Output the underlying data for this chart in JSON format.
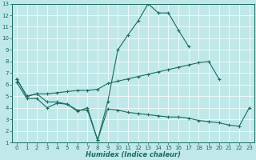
{
  "xlabel": "Humidex (Indice chaleur)",
  "xlim": [
    -0.5,
    23.5
  ],
  "ylim": [
    1,
    13
  ],
  "xticks": [
    0,
    1,
    2,
    3,
    4,
    5,
    6,
    7,
    8,
    9,
    10,
    11,
    12,
    13,
    14,
    15,
    16,
    17,
    18,
    19,
    20,
    21,
    22,
    23
  ],
  "yticks": [
    1,
    2,
    3,
    4,
    5,
    6,
    7,
    8,
    9,
    10,
    11,
    12,
    13
  ],
  "bg_color": "#c0e8e8",
  "line_color": "#1a6b60",
  "line1_y": [
    6.5,
    5.0,
    5.2,
    4.5,
    4.5,
    4.3,
    3.7,
    4.0,
    1.2,
    4.5,
    9.0,
    10.3,
    11.5,
    13.0,
    12.2,
    12.2,
    10.7,
    9.3,
    null,
    null,
    null,
    null,
    null,
    null
  ],
  "line2_y": [
    6.5,
    5.0,
    5.2,
    5.2,
    5.3,
    5.4,
    5.5,
    5.5,
    5.6,
    6.1,
    6.3,
    6.5,
    6.7,
    6.9,
    7.1,
    7.3,
    7.5,
    7.7,
    7.9,
    8.0,
    6.5,
    null,
    null,
    null
  ],
  "line3_y": [
    6.2,
    4.8,
    4.8,
    4.0,
    4.4,
    4.3,
    3.8,
    3.8,
    1.2,
    3.9,
    3.8,
    3.6,
    3.5,
    3.4,
    3.3,
    3.2,
    3.2,
    3.1,
    2.9,
    2.8,
    2.7,
    2.5,
    2.4,
    4.0
  ]
}
